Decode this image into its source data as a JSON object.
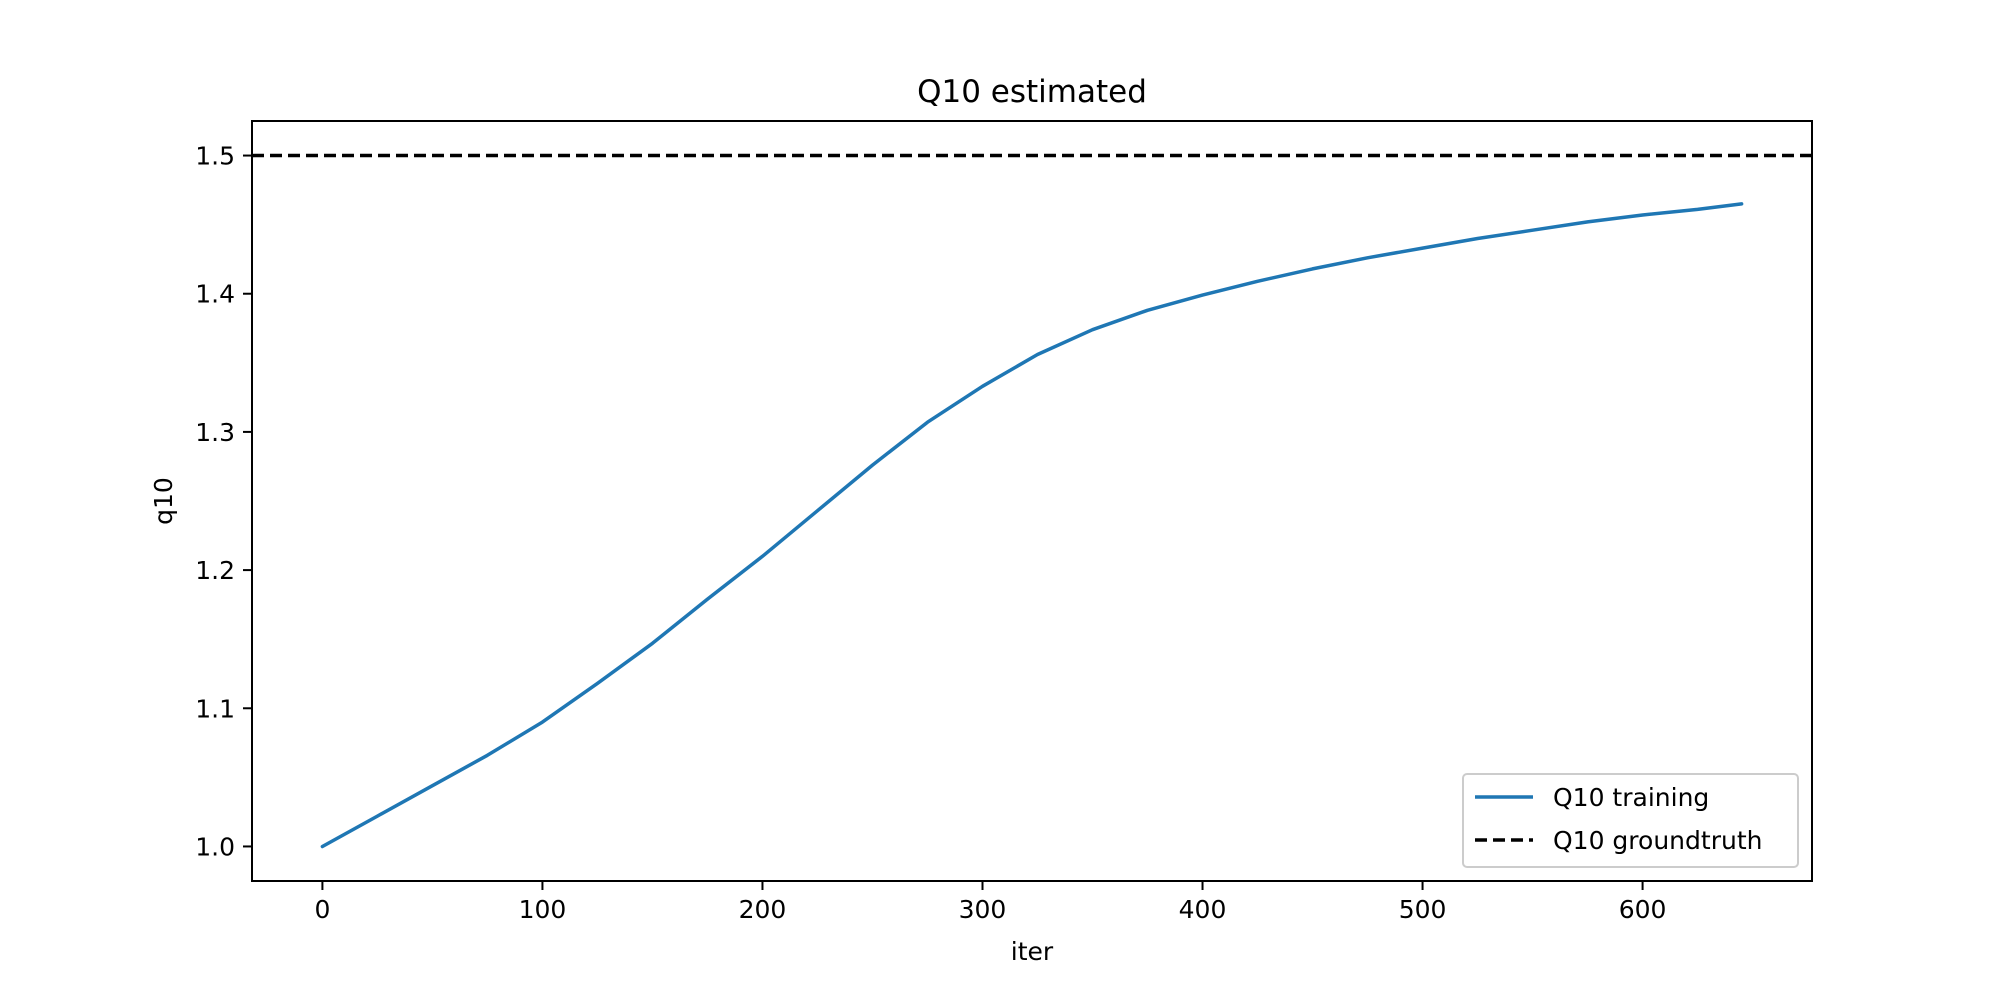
{
  "chart_data": {
    "type": "line",
    "title": "Q10 estimated",
    "xlabel": "iter",
    "ylabel": "q10",
    "xlim": [
      -32,
      677
    ],
    "ylim": [
      0.975,
      1.525
    ],
    "xticks": [
      0,
      100,
      200,
      300,
      400,
      500,
      600
    ],
    "xtick_labels": [
      "0",
      "100",
      "200",
      "300",
      "400",
      "500",
      "600"
    ],
    "yticks": [
      1.0,
      1.1,
      1.2,
      1.3,
      1.4,
      1.5
    ],
    "ytick_labels": [
      "1.0",
      "1.1",
      "1.2",
      "1.3",
      "1.4",
      "1.5"
    ],
    "grid": false,
    "legend_position": "lower-right",
    "series": [
      {
        "name": "Q10 training",
        "color": "#1f77b4",
        "style": "solid",
        "x": [
          0,
          25,
          50,
          75,
          100,
          125,
          150,
          175,
          200,
          225,
          250,
          275,
          300,
          325,
          350,
          375,
          400,
          425,
          450,
          475,
          500,
          525,
          550,
          575,
          600,
          625,
          645
        ],
        "y": [
          1.0,
          1.022,
          1.044,
          1.066,
          1.09,
          1.118,
          1.147,
          1.179,
          1.21,
          1.243,
          1.276,
          1.307,
          1.333,
          1.356,
          1.374,
          1.388,
          1.399,
          1.409,
          1.418,
          1.426,
          1.433,
          1.44,
          1.446,
          1.452,
          1.457,
          1.461,
          1.465
        ]
      },
      {
        "name": "Q10 groundtruth",
        "color": "#000000",
        "style": "dashed",
        "hline": 1.5
      }
    ]
  }
}
